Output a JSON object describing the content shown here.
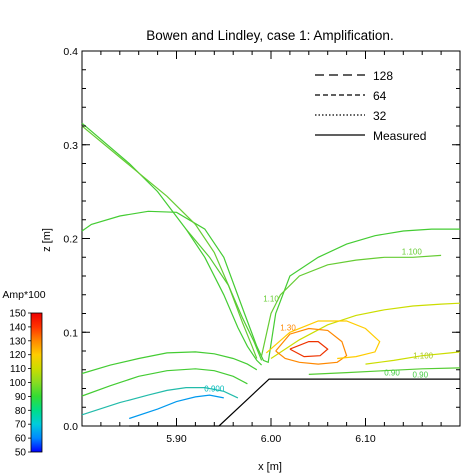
{
  "chart_data": {
    "type": "line",
    "title": "Bowen and Lindley, case 1: Amplification.",
    "xlabel": "x [m]",
    "ylabel": "z [m]",
    "xlim": [
      5.8,
      6.2
    ],
    "ylim": [
      0.0,
      0.4
    ],
    "x_ticks": [
      5.9,
      6.0,
      6.1
    ],
    "x_tick_labels": [
      "5.90",
      "6.00",
      "6.10"
    ],
    "y_ticks": [
      0.0,
      0.1,
      0.2,
      0.3,
      0.4
    ],
    "y_tick_labels": [
      "0.0",
      "0.1",
      "0.2",
      "0.3",
      "0.4"
    ],
    "grid": false,
    "legend_position": "top-right",
    "legend": [
      {
        "label": "128",
        "style": "long-dash"
      },
      {
        "label": "64",
        "style": "dash"
      },
      {
        "label": "32",
        "style": "dotted"
      },
      {
        "label": "Measured",
        "style": "solid"
      }
    ],
    "colorbar": {
      "title": "Amp*100",
      "min": 50,
      "max": 150,
      "tick_labels": [
        "150",
        "140",
        "130",
        "120",
        "110",
        "100",
        "90",
        "80",
        "70",
        "60",
        "50"
      ],
      "colors": [
        "#0000ff",
        "#0088ff",
        "#00ccdd",
        "#00dd88",
        "#33dd33",
        "#88dd22",
        "#ccdd00",
        "#ffcc00",
        "#ff8800",
        "#ff3300",
        "#ee0000"
      ]
    },
    "contour_labels": [
      {
        "text": "1.100",
        "x": 6.149,
        "z": 0.183,
        "color": "#66cc33"
      },
      {
        "text": "1.10",
        "x": 6.0,
        "z": 0.133,
        "color": "#66cc33"
      },
      {
        "text": "1.30",
        "x": 6.018,
        "z": 0.102,
        "color": "#ff8800"
      },
      {
        "text": "1.100",
        "x": 6.161,
        "z": 0.072,
        "color": "#aacc22"
      },
      {
        "text": "0.90",
        "x": 6.128,
        "z": 0.054,
        "color": "#44cc44"
      },
      {
        "text": "0.90",
        "x": 6.158,
        "z": 0.052,
        "color": "#44cc44"
      },
      {
        "text": "0.900",
        "x": 5.94,
        "z": 0.037,
        "color": "#00bbbb"
      }
    ],
    "topography": {
      "name": "Measured",
      "x": [
        5.85,
        5.945,
        5.998,
        6.2
      ],
      "z": [
        0.0,
        0.0,
        0.05,
        0.05
      ]
    },
    "series": [
      {
        "color": "#44cc33",
        "x": [
          5.8,
          5.81,
          5.84,
          5.87,
          5.9,
          5.93,
          5.95,
          5.972,
          5.985,
          5.992,
          5.997,
          6.005,
          6.02,
          6.05,
          6.08,
          6.11,
          6.14,
          6.17,
          6.2
        ],
        "z": [
          0.208,
          0.215,
          0.224,
          0.229,
          0.228,
          0.21,
          0.18,
          0.12,
          0.085,
          0.07,
          0.068,
          0.12,
          0.16,
          0.18,
          0.194,
          0.203,
          0.208,
          0.21,
          0.21
        ]
      },
      {
        "color": "#44cc33",
        "x": [
          5.8,
          5.85,
          5.88,
          5.91,
          5.93,
          5.95,
          5.965,
          5.975,
          5.985,
          5.99
        ],
        "z": [
          0.323,
          0.28,
          0.25,
          0.21,
          0.18,
          0.14,
          0.105,
          0.085,
          0.07,
          0.065
        ]
      },
      {
        "color": "#66cc33",
        "x": [
          5.8,
          5.86,
          5.89,
          5.92,
          5.94,
          5.955,
          5.97,
          5.98,
          5.985
        ],
        "z": [
          0.32,
          0.27,
          0.245,
          0.215,
          0.185,
          0.15,
          0.11,
          0.085,
          0.072
        ]
      },
      {
        "color": "#55cc33",
        "x": [
          5.91,
          5.935,
          5.955,
          5.97,
          5.982,
          5.99
        ],
        "z": [
          0.21,
          0.18,
          0.15,
          0.115,
          0.09,
          0.07
        ]
      },
      {
        "color": "#66cc33",
        "x": [
          5.99,
          6.0,
          6.01,
          6.03,
          6.06,
          6.09,
          6.12,
          6.15,
          6.18
        ],
        "z": [
          0.075,
          0.12,
          0.14,
          0.16,
          0.172,
          0.177,
          0.18,
          0.18,
          0.182
        ]
      },
      {
        "color": "#44cc33",
        "x": [
          5.8,
          5.83,
          5.86,
          5.89,
          5.92,
          5.94,
          5.96,
          5.975,
          5.985
        ],
        "z": [
          0.056,
          0.065,
          0.072,
          0.078,
          0.079,
          0.077,
          0.072,
          0.066,
          0.06
        ]
      },
      {
        "color": "#44cc33",
        "x": [
          5.8,
          5.83,
          5.86,
          5.89,
          5.92,
          5.94,
          5.96,
          5.975
        ],
        "z": [
          0.032,
          0.043,
          0.053,
          0.059,
          0.061,
          0.059,
          0.053,
          0.045
        ]
      },
      {
        "color": "#22bbaa",
        "x": [
          5.8,
          5.84,
          5.87,
          5.89,
          5.91,
          5.93,
          5.95,
          5.965
        ],
        "z": [
          0.012,
          0.025,
          0.033,
          0.038,
          0.041,
          0.041,
          0.037,
          0.03
        ]
      },
      {
        "color": "#0099ee",
        "x": [
          5.85,
          5.88,
          5.9,
          5.92,
          5.935,
          5.95
        ],
        "z": [
          0.008,
          0.018,
          0.026,
          0.031,
          0.033,
          0.03
        ]
      },
      {
        "color": "#ccdd00",
        "x": [
          6.0,
          6.03,
          6.06,
          6.09,
          6.12,
          6.15,
          6.18,
          6.2
        ],
        "z": [
          0.072,
          0.092,
          0.108,
          0.118,
          0.124,
          0.128,
          0.13,
          0.131
        ]
      },
      {
        "color": "#ccdd00",
        "x": [
          6.1,
          6.13,
          6.16,
          6.19,
          6.2
        ],
        "z": [
          0.066,
          0.07,
          0.075,
          0.078,
          0.079
        ]
      },
      {
        "color": "#55cc33",
        "x": [
          6.04,
          6.08,
          6.12,
          6.16,
          6.2
        ],
        "z": [
          0.055,
          0.057,
          0.059,
          0.061,
          0.062
        ]
      },
      {
        "color": "#ff8800",
        "x": [
          6.005,
          6.02,
          6.04,
          6.06,
          6.075,
          6.08,
          6.07,
          6.05,
          6.03,
          6.015,
          6.005
        ],
        "z": [
          0.08,
          0.098,
          0.104,
          0.102,
          0.09,
          0.075,
          0.068,
          0.066,
          0.068,
          0.072,
          0.08
        ]
      },
      {
        "color": "#ee3300",
        "x": [
          6.02,
          6.04,
          6.05,
          6.06,
          6.052,
          6.035,
          6.02
        ],
        "z": [
          0.082,
          0.09,
          0.09,
          0.082,
          0.075,
          0.074,
          0.082
        ]
      },
      {
        "color": "#ffcc00",
        "x": [
          5.995,
          6.02,
          6.05,
          6.08,
          6.1,
          6.115,
          6.11,
          6.09,
          6.07
        ],
        "z": [
          0.078,
          0.1,
          0.112,
          0.112,
          0.104,
          0.09,
          0.079,
          0.074,
          0.072
        ]
      }
    ]
  }
}
